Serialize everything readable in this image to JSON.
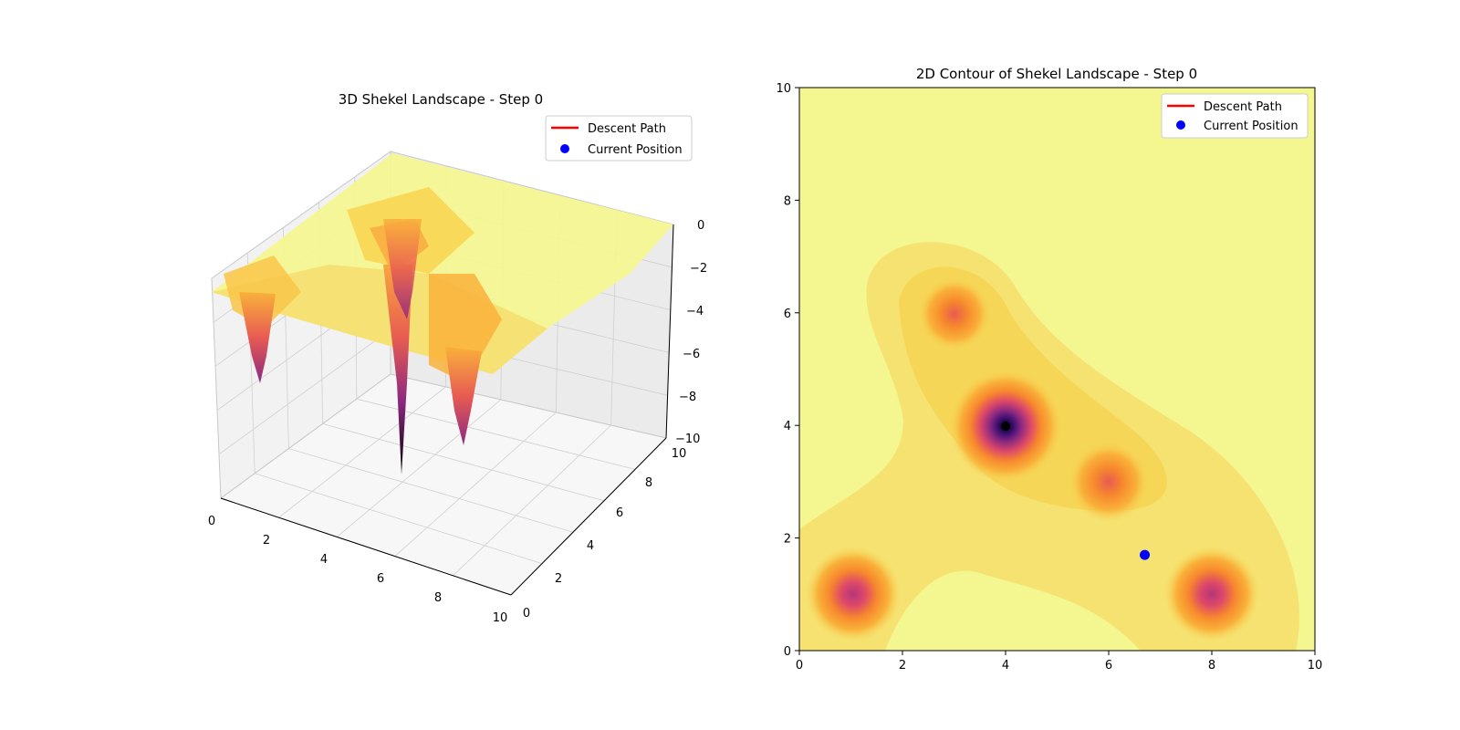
{
  "chart_data": [
    {
      "type": "surface",
      "title": "3D Shekel Landscape - Step 0",
      "xlabel": "",
      "ylabel": "",
      "zlabel": "",
      "xlim": [
        0,
        10
      ],
      "ylim": [
        0,
        10
      ],
      "zlim": [
        -10,
        0
      ],
      "x_ticks": [
        "0",
        "2",
        "4",
        "6",
        "8",
        "10"
      ],
      "y_ticks": [
        "0",
        "2",
        "4",
        "6",
        "8",
        "10"
      ],
      "z_ticks": [
        "0",
        "−2",
        "−4",
        "−6",
        "−8",
        "−10"
      ],
      "legend": {
        "placement": "top-right",
        "entries": [
          "Descent Path",
          "Current Position"
        ]
      },
      "grid": true,
      "colormap": "inferno",
      "shekel_minima": [
        {
          "x": 4,
          "y": 4,
          "z": -10.0
        },
        {
          "x": 1,
          "y": 1,
          "z": -5.0
        },
        {
          "x": 8,
          "y": 1,
          "z": -5.0
        },
        {
          "x": 6,
          "y": 3,
          "z": -4.5
        },
        {
          "x": 3,
          "y": 6,
          "z": -4.0
        }
      ],
      "descent_path": [],
      "current_position": {
        "x": 6.7,
        "y": 1.7
      }
    },
    {
      "type": "contour",
      "title": "2D Contour of Shekel Landscape - Step 0",
      "xlabel": "",
      "ylabel": "",
      "xlim": [
        0,
        10
      ],
      "ylim": [
        0,
        10
      ],
      "x_ticks": [
        "0",
        "2",
        "4",
        "6",
        "8",
        "10"
      ],
      "y_ticks": [
        "0",
        "2",
        "4",
        "6",
        "8",
        "10"
      ],
      "legend": {
        "placement": "top-right",
        "entries": [
          "Descent Path",
          "Current Position"
        ]
      },
      "colormap": "inferno",
      "shekel_minima": [
        {
          "x": 4,
          "y": 4
        },
        {
          "x": 1,
          "y": 1
        },
        {
          "x": 8,
          "y": 1
        },
        {
          "x": 6,
          "y": 3
        },
        {
          "x": 3,
          "y": 6
        }
      ],
      "descent_path": [],
      "current_position": {
        "x": 6.7,
        "y": 1.7
      }
    }
  ],
  "colors": {
    "descent_path": "#ff0000",
    "current_position": "#0000ff",
    "plateau": "#f4f68f",
    "axis": "#000000",
    "grid": "#d0d0d0"
  }
}
